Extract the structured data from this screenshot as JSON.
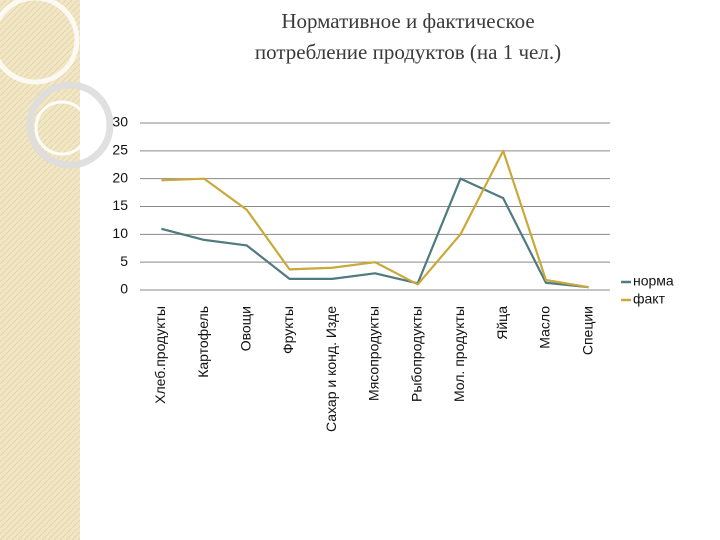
{
  "chart_data": {
    "type": "line",
    "title": [
      "Нормативное и фактическое",
      "потребление продуктов (на 1 чел.)"
    ],
    "categories": [
      "Хлеб.продукты",
      "Картофель",
      "Овощи",
      "Фрукты",
      "Сахар и конд. Изде",
      "Мясопродукты",
      "Рыбопродукты",
      "Мол. продукты",
      "Яйца",
      "Масло",
      "Специи"
    ],
    "series": [
      {
        "name": "норма",
        "color": "#4f7b80",
        "values": [
          11,
          9,
          8,
          2,
          2,
          3,
          1.2,
          20,
          16.5,
          1.3,
          0.5
        ]
      },
      {
        "name": "факт",
        "color": "#c9a93a",
        "values": [
          19.7,
          20,
          14.4,
          3.7,
          4,
          5,
          1,
          10,
          25,
          1.8,
          0.5
        ]
      }
    ],
    "ylim": [
      0,
      30
    ],
    "yticks": [
      0,
      5,
      10,
      15,
      20,
      25,
      30
    ],
    "grid": true,
    "legend": "right"
  }
}
